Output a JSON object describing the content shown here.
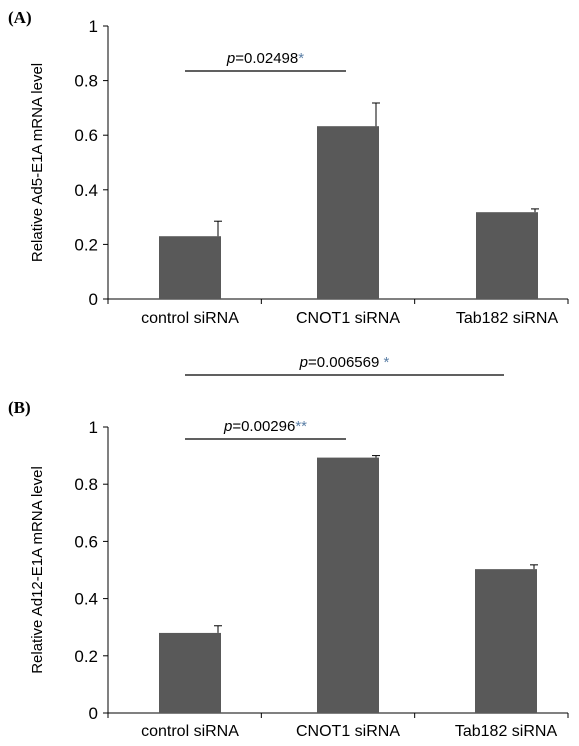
{
  "chart_data": [
    {
      "type": "bar",
      "panel_label": "(A)",
      "categories": [
        "control siRNA",
        "CNOT1 siRNA",
        "Tab182 siRNA"
      ],
      "values": [
        0.23,
        0.633,
        0.318
      ],
      "errors": [
        0.055,
        0.085,
        0.012
      ],
      "ylabel": "Relative Ad5-E1A mRNA level",
      "ylim": [
        0,
        1
      ],
      "yticks": [
        "0",
        "0.2",
        "0.4",
        "0.6",
        "0.8",
        "1"
      ],
      "bar_color": "#595959",
      "grid": false,
      "significance": [
        {
          "from": 0,
          "to": 1,
          "p_label": "p",
          "p_value": "=0.02498",
          "stars": "*"
        }
      ]
    },
    {
      "type": "bar",
      "panel_label": "(B)",
      "categories": [
        "control siRNA",
        "CNOT1 siRNA",
        "Tab182 siRNA"
      ],
      "values": [
        0.28,
        0.893,
        0.503
      ],
      "errors": [
        0.025,
        0.007,
        0.015
      ],
      "ylabel": "Relative Ad12-E1A mRNA level",
      "ylim": [
        0,
        1
      ],
      "yticks": [
        "0",
        "0.2",
        "0.4",
        "0.6",
        "0.8",
        "1"
      ],
      "bar_color": "#595959",
      "grid": false,
      "significance": [
        {
          "from": 0,
          "to": 2,
          "p_label": "p",
          "p_value": "=0.006569 ",
          "stars": "*"
        },
        {
          "from": 0,
          "to": 1,
          "p_label": "p",
          "p_value": "=0.00296",
          "stars": "**"
        }
      ]
    }
  ]
}
